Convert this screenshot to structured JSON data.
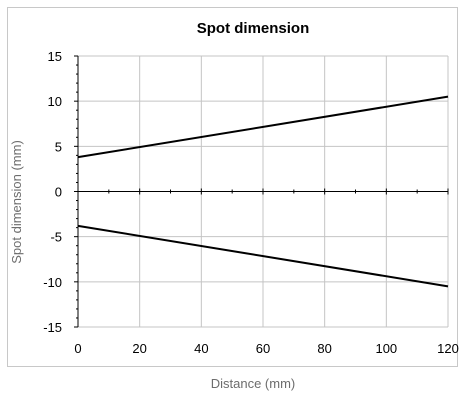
{
  "chart_data": {
    "type": "line",
    "title": "Spot dimension",
    "xlabel": "Distance (mm)",
    "ylabel": "Spot dimension (mm)",
    "xlim": [
      0,
      120
    ],
    "ylim": [
      -15,
      15
    ],
    "xticks": [
      0,
      20,
      40,
      60,
      80,
      100,
      120
    ],
    "yticks": [
      15,
      10,
      5,
      0,
      -5,
      -10,
      -15
    ],
    "grid": true,
    "legend": "none",
    "series": [
      {
        "x": [
          0,
          120
        ],
        "y": [
          3.8,
          10.5
        ],
        "color": "#000000"
      },
      {
        "x": [
          0,
          120
        ],
        "y": [
          -3.8,
          -10.5
        ],
        "color": "#000000"
      }
    ]
  }
}
